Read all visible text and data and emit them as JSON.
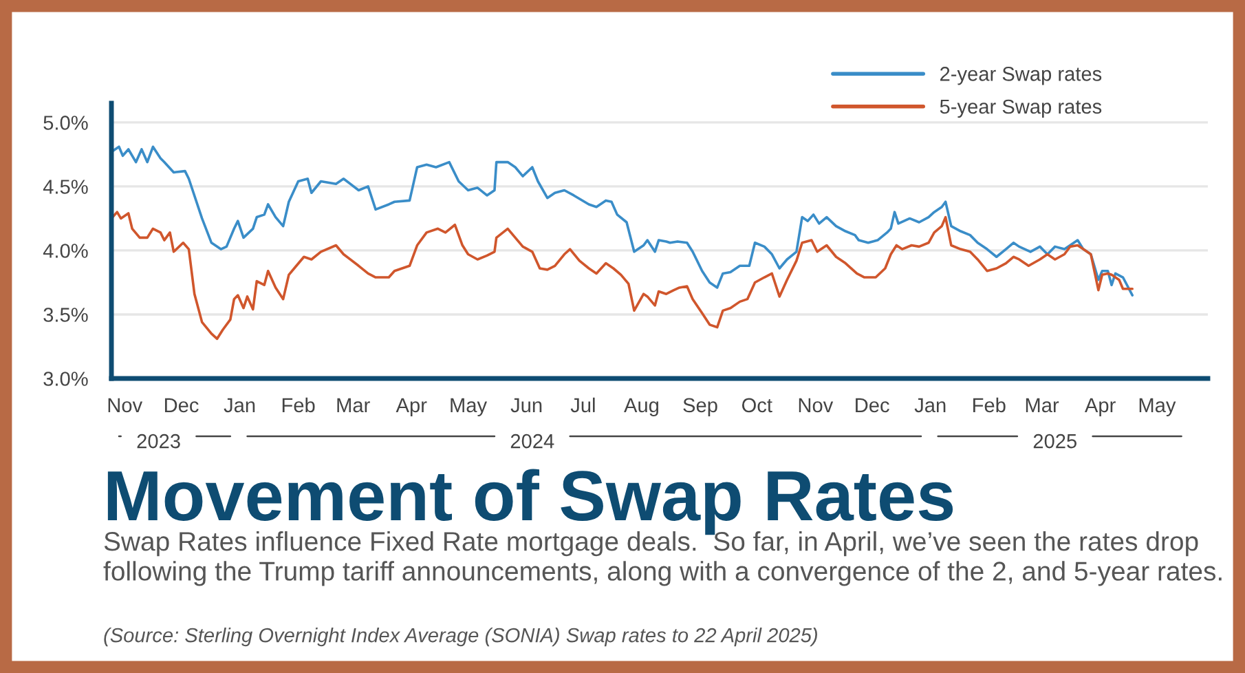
{
  "chart_data": {
    "type": "line",
    "title": "Movement of Swap Rates",
    "subtitle": "Swap Rates influence Fixed Rate mortgage deals.  So far, in April, we’ve seen the rates drop following the Trump tariff announcements, along with a convergence of the 2, and 5-year rates.",
    "annotations": [
      "(Source: Sterling Overnight Index Average (SONIA) Swap rates to 22 April 2025)"
    ],
    "series": [
      {
        "name": "2-year Swap rates",
        "color": "#3a8dc8",
        "x": [
          "2023-10-25",
          "2023-10-29",
          "2023-10-31",
          "2023-11-03",
          "2023-11-07",
          "2023-11-10",
          "2023-11-13",
          "2023-11-16",
          "2023-11-20",
          "2023-11-22",
          "2023-11-27",
          "2023-12-03",
          "2023-12-05",
          "2023-12-12",
          "2023-12-17",
          "2023-12-22",
          "2023-12-25",
          "2023-12-29",
          "2023-12-31",
          "2024-01-03",
          "2024-01-08",
          "2024-01-10",
          "2024-01-14",
          "2024-01-16",
          "2024-01-20",
          "2024-01-24",
          "2024-01-27",
          "2024-02-01",
          "2024-02-06",
          "2024-02-08",
          "2024-02-13",
          "2024-02-21",
          "2024-02-25",
          "2024-03-04",
          "2024-03-09",
          "2024-03-13",
          "2024-03-20",
          "2024-03-23",
          "2024-03-31",
          "2024-04-04",
          "2024-04-09",
          "2024-04-14",
          "2024-04-21",
          "2024-04-26",
          "2024-05-01",
          "2024-05-06",
          "2024-05-11",
          "2024-05-15",
          "2024-05-16",
          "2024-05-22",
          "2024-05-26",
          "2024-05-30",
          "2024-06-04",
          "2024-06-07",
          "2024-06-12",
          "2024-06-16",
          "2024-06-21",
          "2024-06-26",
          "2024-07-04",
          "2024-07-08",
          "2024-07-13",
          "2024-07-16",
          "2024-07-19",
          "2024-07-24",
          "2024-07-28",
          "2024-08-02",
          "2024-08-04",
          "2024-08-08",
          "2024-08-10",
          "2024-08-14",
          "2024-08-16",
          "2024-08-20",
          "2024-08-25",
          "2024-08-28",
          "2024-09-02",
          "2024-09-06",
          "2024-09-10",
          "2024-09-13",
          "2024-09-17",
          "2024-09-22",
          "2024-09-27",
          "2024-09-30",
          "2024-10-05",
          "2024-10-09",
          "2024-10-13",
          "2024-10-17",
          "2024-10-22",
          "2024-10-25",
          "2024-10-28",
          "2024-10-31",
          "2024-11-03",
          "2024-11-07",
          "2024-11-12",
          "2024-11-17",
          "2024-11-22",
          "2024-11-24",
          "2024-11-29",
          "2024-12-04",
          "2024-12-09",
          "2024-12-11",
          "2024-12-13",
          "2024-12-15",
          "2024-12-21",
          "2024-12-26",
          "2024-12-31",
          "2025-01-03",
          "2025-01-07",
          "2025-01-09",
          "2025-01-12",
          "2025-01-17",
          "2025-01-22",
          "2025-01-26",
          "2025-01-31",
          "2025-02-05",
          "2025-02-10",
          "2025-02-14",
          "2025-02-17",
          "2025-02-23",
          "2025-02-28",
          "2025-03-04",
          "2025-03-08",
          "2025-03-13",
          "2025-03-16",
          "2025-03-20",
          "2025-03-23",
          "2025-03-27",
          "2025-03-31",
          "2025-04-02",
          "2025-04-05",
          "2025-04-07",
          "2025-04-09",
          "2025-04-13",
          "2025-04-18"
        ],
        "values": [
          4.77,
          4.81,
          4.74,
          4.79,
          4.69,
          4.79,
          4.69,
          4.81,
          4.72,
          4.69,
          4.61,
          4.62,
          4.56,
          4.25,
          4.06,
          4.01,
          4.03,
          4.17,
          4.23,
          4.1,
          4.17,
          4.26,
          4.28,
          4.36,
          4.26,
          4.19,
          4.38,
          4.54,
          4.56,
          4.45,
          4.54,
          4.52,
          4.56,
          4.47,
          4.5,
          4.32,
          4.36,
          4.38,
          4.39,
          4.65,
          4.67,
          4.65,
          4.69,
          4.54,
          4.47,
          4.49,
          4.43,
          4.47,
          4.69,
          4.69,
          4.65,
          4.58,
          4.65,
          4.54,
          4.41,
          4.45,
          4.47,
          4.43,
          4.36,
          4.34,
          4.39,
          4.38,
          4.28,
          4.22,
          3.99,
          4.04,
          4.08,
          3.99,
          4.08,
          4.07,
          4.06,
          4.07,
          4.06,
          3.99,
          3.84,
          3.75,
          3.71,
          3.82,
          3.83,
          3.88,
          3.88,
          4.06,
          4.03,
          3.97,
          3.86,
          3.93,
          3.99,
          4.26,
          4.23,
          4.28,
          4.21,
          4.26,
          4.19,
          4.15,
          4.12,
          4.08,
          4.06,
          4.08,
          4.14,
          4.17,
          4.3,
          4.21,
          4.25,
          4.22,
          4.26,
          4.3,
          4.34,
          4.38,
          4.19,
          4.15,
          4.12,
          4.06,
          4.01,
          3.95,
          4.01,
          4.06,
          4.03,
          3.99,
          4.03,
          3.97,
          4.03,
          4.01,
          4.04,
          4.08,
          4.01,
          3.97,
          3.77,
          3.84,
          3.84,
          3.73,
          3.82,
          3.79,
          3.65
        ]
      },
      {
        "name": "5-year Swap rates",
        "color": "#d0562c",
        "x": [
          "2023-10-25",
          "2023-10-28",
          "2023-10-30",
          "2023-11-03",
          "2023-11-05",
          "2023-11-09",
          "2023-11-13",
          "2023-11-16",
          "2023-11-20",
          "2023-11-22",
          "2023-11-25",
          "2023-11-27",
          "2023-12-02",
          "2023-12-05",
          "2023-12-08",
          "2023-12-12",
          "2023-12-17",
          "2023-12-20",
          "2023-12-23",
          "2023-12-27",
          "2023-12-29",
          "2023-12-31",
          "2024-01-03",
          "2024-01-05",
          "2024-01-08",
          "2024-01-10",
          "2024-01-14",
          "2024-01-16",
          "2024-01-20",
          "2024-01-24",
          "2024-01-27",
          "2024-01-31",
          "2024-02-04",
          "2024-02-08",
          "2024-02-13",
          "2024-02-21",
          "2024-02-25",
          "2024-03-04",
          "2024-03-09",
          "2024-03-13",
          "2024-03-20",
          "2024-03-23",
          "2024-03-31",
          "2024-04-04",
          "2024-04-09",
          "2024-04-15",
          "2024-04-19",
          "2024-04-24",
          "2024-04-28",
          "2024-05-01",
          "2024-05-06",
          "2024-05-11",
          "2024-05-15",
          "2024-05-16",
          "2024-05-22",
          "2024-05-26",
          "2024-05-30",
          "2024-06-04",
          "2024-06-08",
          "2024-06-12",
          "2024-06-16",
          "2024-06-21",
          "2024-06-24",
          "2024-06-29",
          "2024-07-04",
          "2024-07-08",
          "2024-07-13",
          "2024-07-17",
          "2024-07-21",
          "2024-07-25",
          "2024-07-28",
          "2024-08-02",
          "2024-08-04",
          "2024-08-08",
          "2024-08-10",
          "2024-08-14",
          "2024-08-18",
          "2024-08-21",
          "2024-08-25",
          "2024-08-28",
          "2024-09-02",
          "2024-09-06",
          "2024-09-10",
          "2024-09-13",
          "2024-09-17",
          "2024-09-22",
          "2024-09-26",
          "2024-09-30",
          "2024-10-05",
          "2024-10-09",
          "2024-10-13",
          "2024-10-17",
          "2024-10-22",
          "2024-10-25",
          "2024-10-30",
          "2024-11-02",
          "2024-11-07",
          "2024-11-12",
          "2024-11-17",
          "2024-11-23",
          "2024-11-27",
          "2024-12-03",
          "2024-12-08",
          "2024-12-11",
          "2024-12-14",
          "2024-12-17",
          "2024-12-22",
          "2024-12-26",
          "2024-12-31",
          "2025-01-03",
          "2025-01-07",
          "2025-01-09",
          "2025-01-12",
          "2025-01-17",
          "2025-01-22",
          "2025-01-26",
          "2025-01-31",
          "2025-02-05",
          "2025-02-10",
          "2025-02-14",
          "2025-02-17",
          "2025-02-22",
          "2025-02-28",
          "2025-03-04",
          "2025-03-08",
          "2025-03-13",
          "2025-03-16",
          "2025-03-20",
          "2025-03-23",
          "2025-03-27",
          "2025-03-31",
          "2025-04-02",
          "2025-04-05",
          "2025-04-07",
          "2025-04-11",
          "2025-04-13",
          "2025-04-18"
        ],
        "values": [
          4.25,
          4.3,
          4.25,
          4.29,
          4.17,
          4.1,
          4.1,
          4.17,
          4.14,
          4.08,
          4.14,
          3.99,
          4.06,
          4.01,
          3.66,
          3.44,
          3.35,
          3.31,
          3.38,
          3.46,
          3.62,
          3.65,
          3.55,
          3.64,
          3.54,
          3.76,
          3.73,
          3.84,
          3.71,
          3.62,
          3.81,
          3.88,
          3.95,
          3.93,
          3.99,
          4.04,
          3.97,
          3.88,
          3.82,
          3.79,
          3.79,
          3.84,
          3.88,
          4.04,
          4.14,
          4.17,
          4.14,
          4.2,
          4.04,
          3.97,
          3.93,
          3.96,
          3.99,
          4.1,
          4.17,
          4.1,
          4.03,
          3.99,
          3.86,
          3.85,
          3.88,
          3.97,
          4.01,
          3.92,
          3.86,
          3.82,
          3.9,
          3.86,
          3.81,
          3.74,
          3.53,
          3.66,
          3.64,
          3.57,
          3.68,
          3.66,
          3.69,
          3.71,
          3.72,
          3.62,
          3.51,
          3.42,
          3.4,
          3.53,
          3.55,
          3.6,
          3.62,
          3.75,
          3.79,
          3.82,
          3.64,
          3.77,
          3.92,
          4.06,
          4.08,
          3.99,
          4.04,
          3.95,
          3.9,
          3.82,
          3.79,
          3.79,
          3.86,
          3.97,
          4.04,
          4.01,
          4.04,
          4.03,
          4.06,
          4.14,
          4.19,
          4.26,
          4.04,
          4.01,
          3.99,
          3.93,
          3.84,
          3.86,
          3.9,
          3.95,
          3.93,
          3.88,
          3.93,
          3.97,
          3.93,
          3.97,
          4.03,
          4.04,
          4.01,
          3.97,
          3.69,
          3.81,
          3.82,
          3.81,
          3.77,
          3.7,
          3.7
        ]
      }
    ],
    "xlim": [
      "2023-10-25",
      "2025-05-28"
    ],
    "xticks": [
      {
        "value": "2023-11-01",
        "label": "Nov"
      },
      {
        "value": "2023-12-01",
        "label": "Dec"
      },
      {
        "value": "2024-01-01",
        "label": "Jan"
      },
      {
        "value": "2024-02-01",
        "label": "Feb"
      },
      {
        "value": "2024-03-01",
        "label": "Mar"
      },
      {
        "value": "2024-04-01",
        "label": "Apr"
      },
      {
        "value": "2024-05-01",
        "label": "May"
      },
      {
        "value": "2024-06-01",
        "label": "Jun"
      },
      {
        "value": "2024-07-01",
        "label": "Jul"
      },
      {
        "value": "2024-08-01",
        "label": "Aug"
      },
      {
        "value": "2024-09-01",
        "label": "Sep"
      },
      {
        "value": "2024-10-01",
        "label": "Oct"
      },
      {
        "value": "2024-11-01",
        "label": "Nov"
      },
      {
        "value": "2024-12-01",
        "label": "Dec"
      },
      {
        "value": "2025-01-01",
        "label": "Jan"
      },
      {
        "value": "2025-02-01",
        "label": "Feb"
      },
      {
        "value": "2025-03-01",
        "label": "Mar"
      },
      {
        "value": "2025-04-01",
        "label": "Apr"
      },
      {
        "value": "2025-05-01",
        "label": "May"
      }
    ],
    "x2lim": [
      "2023-10-25",
      "2025-05-28"
    ],
    "x2ticks": [
      {
        "value": "2023-11-19",
        "label": "2023"
      },
      {
        "value": "2024-06-04",
        "label": "2024"
      },
      {
        "value": "2025-03-08",
        "label": "2025"
      }
    ],
    "ylim": [
      3.0,
      5.15
    ],
    "yticks": [
      {
        "value": 3.0,
        "label": "3.0%"
      },
      {
        "value": 3.5,
        "label": "3.5%"
      },
      {
        "value": 4.0,
        "label": "4.0%"
      },
      {
        "value": 4.5,
        "label": "4.5%"
      },
      {
        "value": 5.0,
        "label": "5.0%"
      }
    ],
    "grid": "y",
    "legend": "top right",
    "line_style": "solid"
  }
}
